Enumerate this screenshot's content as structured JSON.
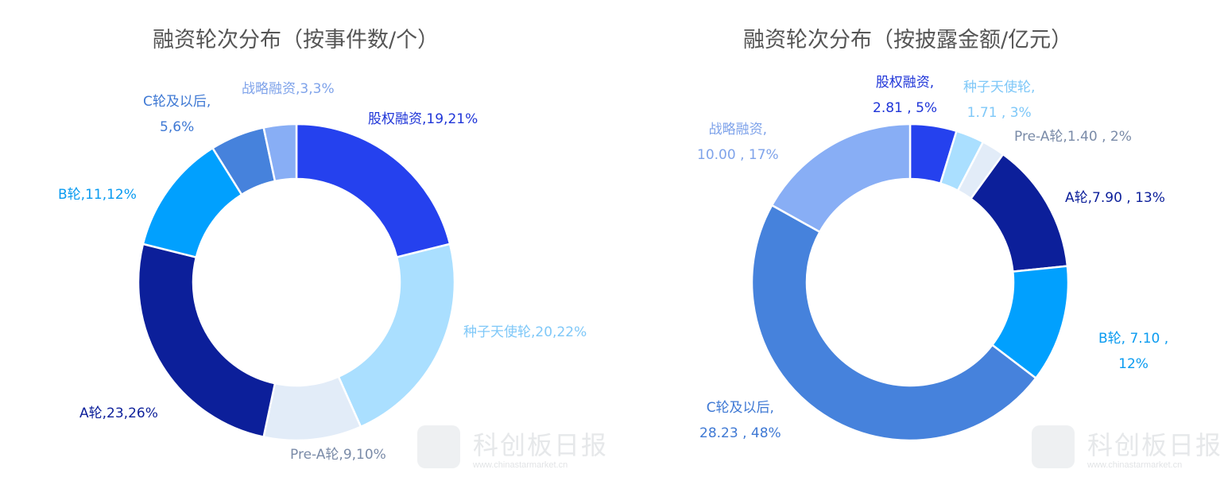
{
  "chart_data": [
    {
      "type": "pie",
      "donut": true,
      "title": "融资轮次分布（按事件数/个）",
      "categories": [
        "股权融资",
        "种子天使轮",
        "Pre-A轮",
        "A轮",
        "B轮",
        "C轮及以后",
        "战略融资"
      ],
      "values": [
        19,
        20,
        9,
        23,
        11,
        5,
        3
      ],
      "percents": [
        "21%",
        "22%",
        "10%",
        "26%",
        "12%",
        "6%",
        "3%"
      ],
      "labels": [
        [
          "股权融资,19,21%"
        ],
        [
          "种子天使轮,20,22%"
        ],
        [
          "Pre-A轮,9,10%"
        ],
        [
          "A轮,23,26%"
        ],
        [
          "B轮,11,12%"
        ],
        [
          "C轮及以后,",
          "5,6%"
        ],
        [
          "战略融资,3,3%"
        ]
      ]
    },
    {
      "type": "pie",
      "donut": true,
      "title": "融资轮次分布（按披露金额/亿元）",
      "categories": [
        "股权融资",
        "种子天使轮",
        "Pre-A轮",
        "A轮",
        "B轮",
        "C轮及以后",
        "战略融资"
      ],
      "values": [
        2.81,
        1.71,
        1.4,
        7.9,
        7.1,
        28.23,
        10.0
      ],
      "percents": [
        "5%",
        "3%",
        "2%",
        "13%",
        "12%",
        "48%",
        "17%"
      ],
      "labels": [
        [
          "股权融资,",
          "2.81 , 5%"
        ],
        [
          "种子天使轮,",
          "1.71 , 3%"
        ],
        [
          "Pre-A轮,1.40 , 2%"
        ],
        [
          "A轮,7.90 , 13%"
        ],
        [
          "B轮, 7.10 ,",
          "12%"
        ],
        [
          "C轮及以后,",
          "28.23 , 48%"
        ],
        [
          "战略融资,",
          "10.00 , 17%"
        ]
      ]
    }
  ],
  "colors": [
    "#2541ee",
    "#aadfff",
    "#e2ecf8",
    "#0c1f9a",
    "#01a0fe",
    "#4682dc",
    "#88aef5"
  ],
  "label_colors": [
    "#1f35d8",
    "#7fc8f8",
    "#7a8ba8",
    "#0c1f9a",
    "#0a9bf0",
    "#3f79d4",
    "#7fa3ea"
  ],
  "watermark": {
    "name": "科创板日报",
    "url": "www.chinastarmarket.cn"
  }
}
